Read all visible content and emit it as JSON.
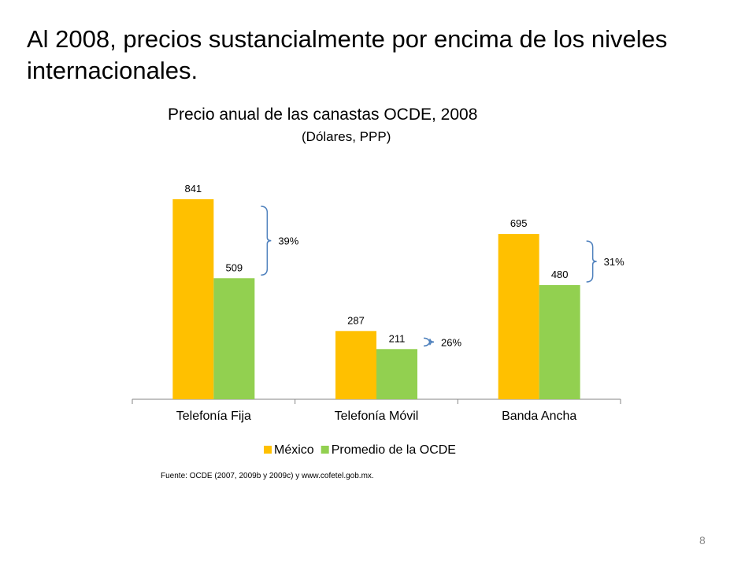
{
  "slide": {
    "title": "Al 2008, precios sustancialmente por encima de los niveles internacionales.",
    "source": "Fuente: OCDE (2007, 2009b y 2009c) y www.cofetel.gob.mx.",
    "page_number": "8"
  },
  "chart_data": {
    "type": "bar",
    "title": "Precio anual de las canastas OCDE, 2008",
    "subtitle": "(Dólares, PPP)",
    "categories": [
      "Telefonía Fija",
      "Telefonía Móvil",
      "Banda Ancha"
    ],
    "series": [
      {
        "name": "México",
        "values": [
          841,
          287,
          695
        ],
        "color": "#FFC000"
      },
      {
        "name": "Promedio de la OCDE",
        "values": [
          509,
          211,
          480
        ],
        "color": "#92D050"
      }
    ],
    "annotations": [
      "39%",
      "26%",
      "31%"
    ],
    "bracket_color": "#4F81BD",
    "ylim": [
      0,
      860
    ],
    "grid": false,
    "legend": "bottom",
    "xlabel": "",
    "ylabel": ""
  }
}
